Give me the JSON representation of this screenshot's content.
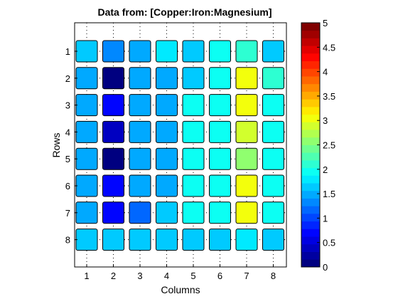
{
  "chart_data": {
    "type": "heatmap",
    "title": "Data from: [Copper:Iron:Magnesium]",
    "xlabel": "Columns",
    "ylabel": "Rows",
    "x_ticks": [
      "1",
      "2",
      "3",
      "4",
      "5",
      "6",
      "7",
      "8"
    ],
    "y_ticks": [
      "1",
      "2",
      "3",
      "4",
      "5",
      "6",
      "7",
      "8"
    ],
    "values": [
      [
        1.6,
        1.4,
        1.5,
        1.8,
        1.7,
        2.0,
        2.1,
        1.7
      ],
      [
        1.5,
        0.1,
        1.5,
        1.5,
        1.7,
        2.0,
        3.0,
        2.1
      ],
      [
        1.5,
        0.75,
        1.5,
        1.5,
        2.0,
        2.0,
        3.0,
        2.0
      ],
      [
        1.5,
        0.4,
        1.5,
        1.5,
        2.0,
        2.0,
        2.9,
        2.0
      ],
      [
        1.5,
        0.1,
        1.5,
        1.5,
        2.0,
        2.0,
        2.65,
        2.0
      ],
      [
        1.5,
        0.75,
        1.5,
        1.5,
        2.0,
        2.0,
        3.0,
        2.0
      ],
      [
        1.5,
        0.75,
        1.2,
        1.7,
        2.0,
        2.0,
        3.0,
        2.0
      ],
      [
        1.6,
        1.7,
        1.7,
        1.7,
        1.7,
        1.7,
        1.8,
        1.7
      ]
    ],
    "colorbar": {
      "min": 0,
      "max": 5,
      "levels": 32,
      "tick_labels": [
        "0",
        "0.5",
        "1",
        "1.5",
        "2",
        "2.5",
        "3",
        "3.5",
        "4",
        "4.5",
        "5"
      ]
    },
    "colormap": "jet"
  }
}
